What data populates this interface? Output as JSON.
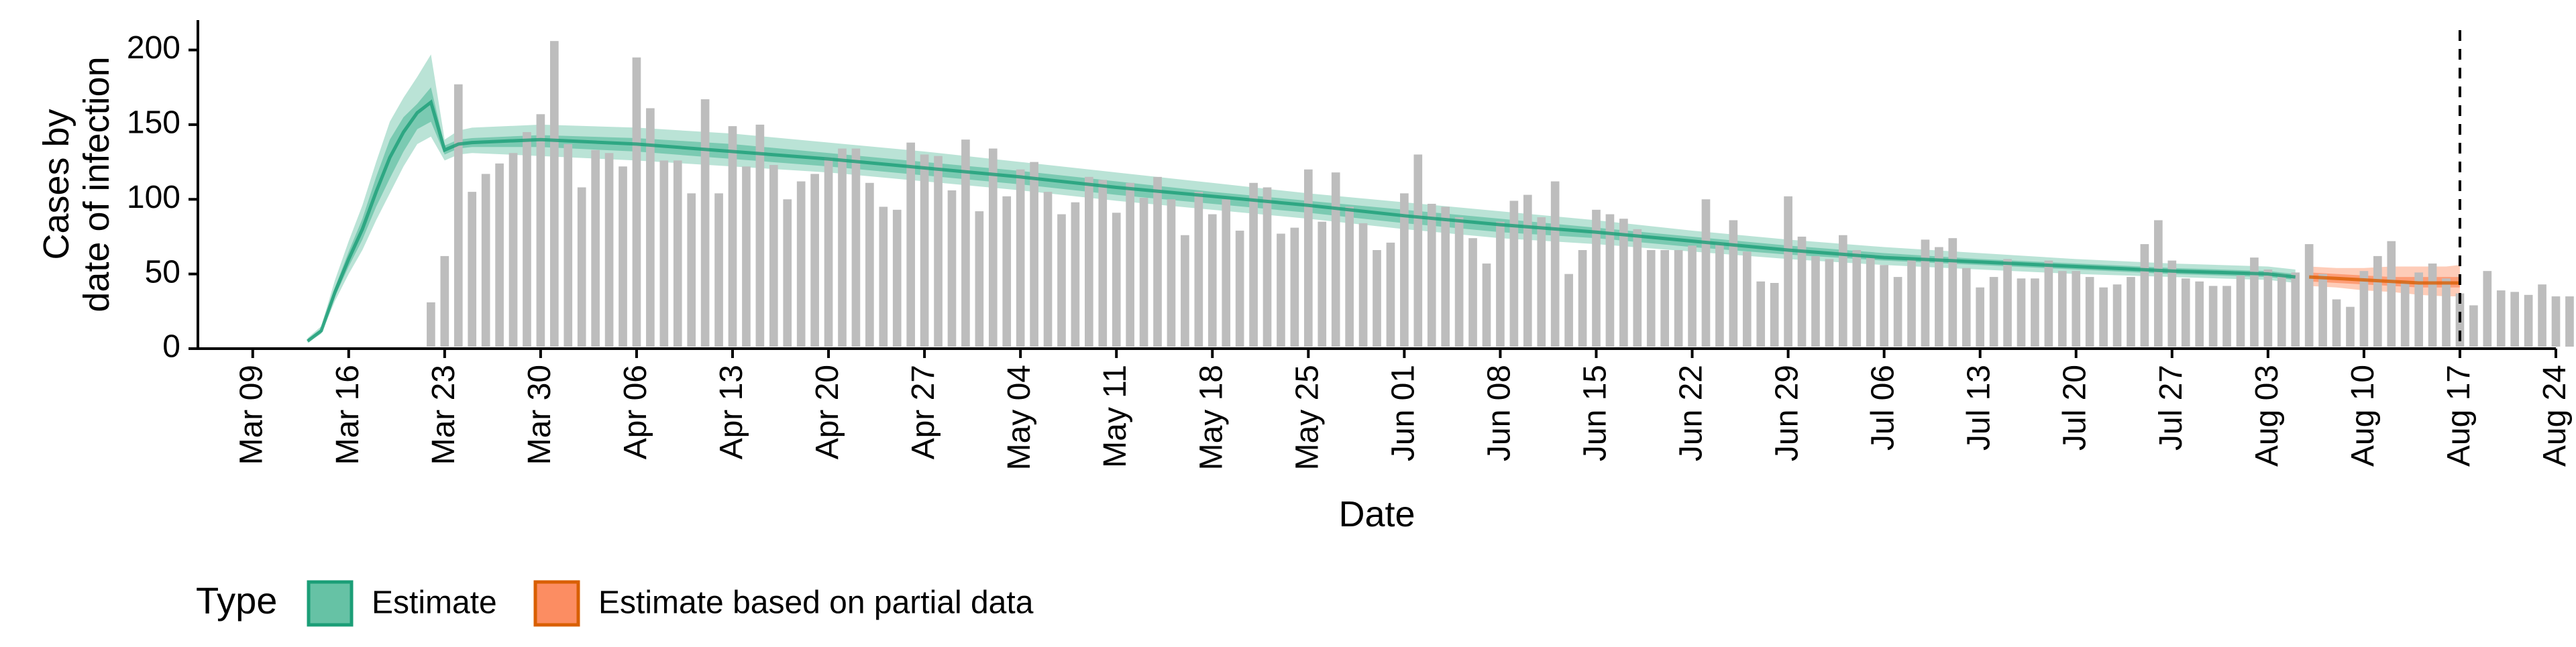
{
  "chart_data": {
    "type": "bar",
    "xlabel": "Date",
    "ylabel": "Cases by\ndate of infection",
    "ylim": [
      0,
      220
    ],
    "xlim": [
      "2020-03-05",
      "2020-08-24"
    ],
    "y_ticks": [
      0,
      50,
      100,
      150,
      200
    ],
    "x_ticks": [
      {
        "date": "2020-03-09",
        "label": "Mar 09"
      },
      {
        "date": "2020-03-16",
        "label": "Mar 16"
      },
      {
        "date": "2020-03-23",
        "label": "Mar 23"
      },
      {
        "date": "2020-03-30",
        "label": "Mar 30"
      },
      {
        "date": "2020-04-06",
        "label": "Apr 06"
      },
      {
        "date": "2020-04-13",
        "label": "Apr 13"
      },
      {
        "date": "2020-04-20",
        "label": "Apr 20"
      },
      {
        "date": "2020-04-27",
        "label": "Apr 27"
      },
      {
        "date": "2020-05-04",
        "label": "May 04"
      },
      {
        "date": "2020-05-11",
        "label": "May 11"
      },
      {
        "date": "2020-05-18",
        "label": "May 18"
      },
      {
        "date": "2020-05-25",
        "label": "May 25"
      },
      {
        "date": "2020-06-01",
        "label": "Jun 01"
      },
      {
        "date": "2020-06-08",
        "label": "Jun 08"
      },
      {
        "date": "2020-06-15",
        "label": "Jun 15"
      },
      {
        "date": "2020-06-22",
        "label": "Jun 22"
      },
      {
        "date": "2020-06-29",
        "label": "Jun 29"
      },
      {
        "date": "2020-07-06",
        "label": "Jul 06"
      },
      {
        "date": "2020-07-13",
        "label": "Jul 13"
      },
      {
        "date": "2020-07-20",
        "label": "Jul 20"
      },
      {
        "date": "2020-07-27",
        "label": "Jul 27"
      },
      {
        "date": "2020-08-03",
        "label": "Aug 03"
      },
      {
        "date": "2020-08-10",
        "label": "Aug 10"
      },
      {
        "date": "2020-08-17",
        "label": "Aug 17"
      },
      {
        "date": "2020-08-24",
        "label": "Aug 24"
      }
    ],
    "grid": false,
    "vline_date": "2020-08-17",
    "bars": {
      "color": "#bdbdbd",
      "start_date": "2020-03-22",
      "values": [
        31,
        62,
        177,
        105,
        117,
        124,
        131,
        145,
        157,
        206,
        137,
        108,
        133,
        131,
        122,
        195,
        161,
        126,
        126,
        104,
        167,
        104,
        149,
        122,
        150,
        123,
        100,
        112,
        117,
        128,
        134,
        134,
        111,
        95,
        93,
        138,
        130,
        129,
        106,
        140,
        92,
        134,
        102,
        120,
        125,
        105,
        90,
        98,
        115,
        113,
        91,
        111,
        101,
        115,
        100,
        76,
        105,
        90,
        100,
        79,
        111,
        108,
        77,
        81,
        120,
        85,
        118,
        95,
        84,
        66,
        71,
        104,
        130,
        97,
        95,
        88,
        74,
        57,
        85,
        99,
        103,
        88,
        112,
        50,
        66,
        93,
        90,
        87,
        80,
        66,
        66,
        66,
        69,
        100,
        71,
        86,
        65,
        45,
        44,
        102,
        75,
        62,
        60,
        76,
        66,
        61,
        56,
        48,
        60,
        73,
        68,
        74,
        54,
        41,
        48,
        60,
        47,
        47,
        59,
        52,
        52,
        48,
        41,
        43,
        48,
        70,
        86,
        59,
        47,
        45,
        42,
        42,
        49,
        61,
        53,
        50,
        51,
        70,
        50,
        33,
        28,
        52,
        62,
        72,
        45,
        51,
        57,
        47,
        37,
        29,
        52,
        39,
        38,
        36,
        43,
        35,
        35,
        37
      ]
    },
    "series": [
      {
        "name": "Estimate",
        "color": "#1b9e77",
        "fill": "#66c2a5",
        "dates": [
          "2020-03-13",
          "2020-03-14",
          "2020-03-15",
          "2020-03-16",
          "2020-03-17",
          "2020-03-18",
          "2020-03-19",
          "2020-03-20",
          "2020-03-21",
          "2020-03-22",
          "2020-03-23",
          "2020-03-24",
          "2020-03-25",
          "2020-03-30",
          "2020-04-06",
          "2020-04-13",
          "2020-04-20",
          "2020-04-27",
          "2020-05-04",
          "2020-05-11",
          "2020-05-18",
          "2020-05-25",
          "2020-06-01",
          "2020-06-08",
          "2020-06-15",
          "2020-06-22",
          "2020-06-29",
          "2020-07-06",
          "2020-07-13",
          "2020-07-20",
          "2020-07-27",
          "2020-08-03",
          "2020-08-05"
        ],
        "median": [
          5,
          12,
          38,
          60,
          80,
          105,
          128,
          145,
          158,
          165,
          133,
          137,
          138,
          140,
          137,
          132,
          127,
          121,
          115,
          108,
          102,
          96,
          89,
          83,
          78,
          72,
          66,
          61,
          58,
          55,
          52,
          50,
          48
        ],
        "lower_50": [
          5,
          11,
          35,
          55,
          73,
          95,
          114,
          132,
          147,
          152,
          130,
          134,
          135,
          135,
          132,
          127,
          122,
          116,
          110,
          103,
          97,
          91,
          84,
          78,
          74,
          68,
          63,
          59,
          56,
          53,
          50,
          48,
          46
        ],
        "upper_50": [
          6,
          13,
          41,
          65,
          87,
          115,
          140,
          155,
          164,
          175,
          136,
          140,
          141,
          143,
          141,
          137,
          131,
          125,
          119,
          112,
          105,
          99,
          93,
          87,
          81,
          75,
          69,
          64,
          60,
          57,
          54,
          52,
          50
        ],
        "lower_90": [
          4,
          10,
          32,
          50,
          66,
          86,
          104,
          122,
          137,
          142,
          126,
          130,
          131,
          129,
          126,
          122,
          118,
          112,
          106,
          99,
          93,
          87,
          80,
          74,
          70,
          65,
          60,
          56,
          53,
          50,
          48,
          46,
          44
        ],
        "upper_90": [
          7,
          15,
          46,
          72,
          96,
          125,
          152,
          168,
          182,
          197,
          140,
          146,
          148,
          150,
          148,
          144,
          138,
          132,
          125,
          118,
          111,
          104,
          98,
          92,
          86,
          79,
          73,
          68,
          64,
          60,
          57,
          55,
          53
        ]
      },
      {
        "name": "Estimate based on partial data",
        "color": "#d95f02",
        "fill": "#fc8d62",
        "dates": [
          "2020-08-06",
          "2020-08-08",
          "2020-08-10",
          "2020-08-12",
          "2020-08-14",
          "2020-08-16",
          "2020-08-17"
        ],
        "median": [
          48,
          47,
          46,
          45,
          44,
          44,
          44
        ],
        "lower_50": [
          45,
          44,
          43,
          42,
          41,
          41,
          41
        ],
        "upper_50": [
          51,
          50,
          49,
          48,
          48,
          48,
          48
        ],
        "lower_90": [
          42,
          41,
          39,
          38,
          36,
          35,
          35
        ],
        "upper_90": [
          55,
          54,
          54,
          55,
          55,
          55,
          56
        ]
      }
    ],
    "legend": {
      "title": "Type",
      "placement": "bottom-left",
      "items": [
        {
          "label": "Estimate",
          "fill": "#66c2a5",
          "stroke": "#1b9e77"
        },
        {
          "label": "Estimate based on partial data",
          "fill": "#fc8d62",
          "stroke": "#d95f02"
        }
      ]
    }
  }
}
